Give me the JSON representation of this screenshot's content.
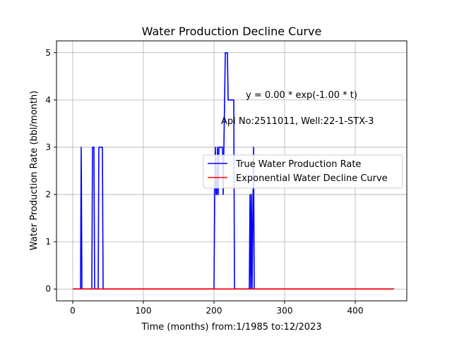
{
  "chart_data": {
    "type": "line",
    "title": "Water Production Decline Curve",
    "xlabel": "Time (months) from:1/1985 to:12/2023",
    "ylabel": "Water Production Rate (bbl/month)",
    "xlim": [
      -23,
      473
    ],
    "ylim": [
      -0.25,
      5.25
    ],
    "xticks": [
      0,
      100,
      200,
      300,
      400
    ],
    "yticks": [
      0,
      1,
      2,
      3,
      4,
      5
    ],
    "grid": true,
    "legend_position": "center-right",
    "annotations": [
      {
        "text": "y = 0.00 * exp(-1.00 * t)",
        "x": 245,
        "y": 4.1
      },
      {
        "text": "Api No:2511011, Well:22-1-STX-3",
        "x": 210,
        "y": 3.55
      }
    ],
    "series": [
      {
        "name": "True Water Production Rate",
        "color": "#0000ff",
        "points": [
          [
            0,
            0
          ],
          [
            11,
            0
          ],
          [
            12,
            3
          ],
          [
            13,
            0
          ],
          [
            27,
            0
          ],
          [
            28,
            3
          ],
          [
            30,
            3
          ],
          [
            31,
            0
          ],
          [
            36,
            0
          ],
          [
            37,
            3
          ],
          [
            42,
            3
          ],
          [
            43,
            0
          ],
          [
            200,
            0
          ],
          [
            201,
            2
          ],
          [
            202,
            3
          ],
          [
            203,
            2
          ],
          [
            204,
            2
          ],
          [
            205,
            3
          ],
          [
            206,
            2
          ],
          [
            207,
            3
          ],
          [
            212,
            3
          ],
          [
            213,
            2
          ],
          [
            214,
            3
          ],
          [
            215,
            4
          ],
          [
            216,
            5
          ],
          [
            219,
            5
          ],
          [
            220,
            4
          ],
          [
            228,
            4
          ],
          [
            229,
            0
          ],
          [
            250,
            0
          ],
          [
            251,
            2
          ],
          [
            252,
            0
          ],
          [
            253,
            2
          ],
          [
            254,
            0
          ],
          [
            256,
            3
          ],
          [
            257,
            0
          ],
          [
            455,
            0
          ]
        ]
      },
      {
        "name": "Exponential Water Decline Curve",
        "color": "#ff0000",
        "points": [
          [
            0,
            0
          ],
          [
            455,
            0
          ]
        ]
      }
    ]
  }
}
